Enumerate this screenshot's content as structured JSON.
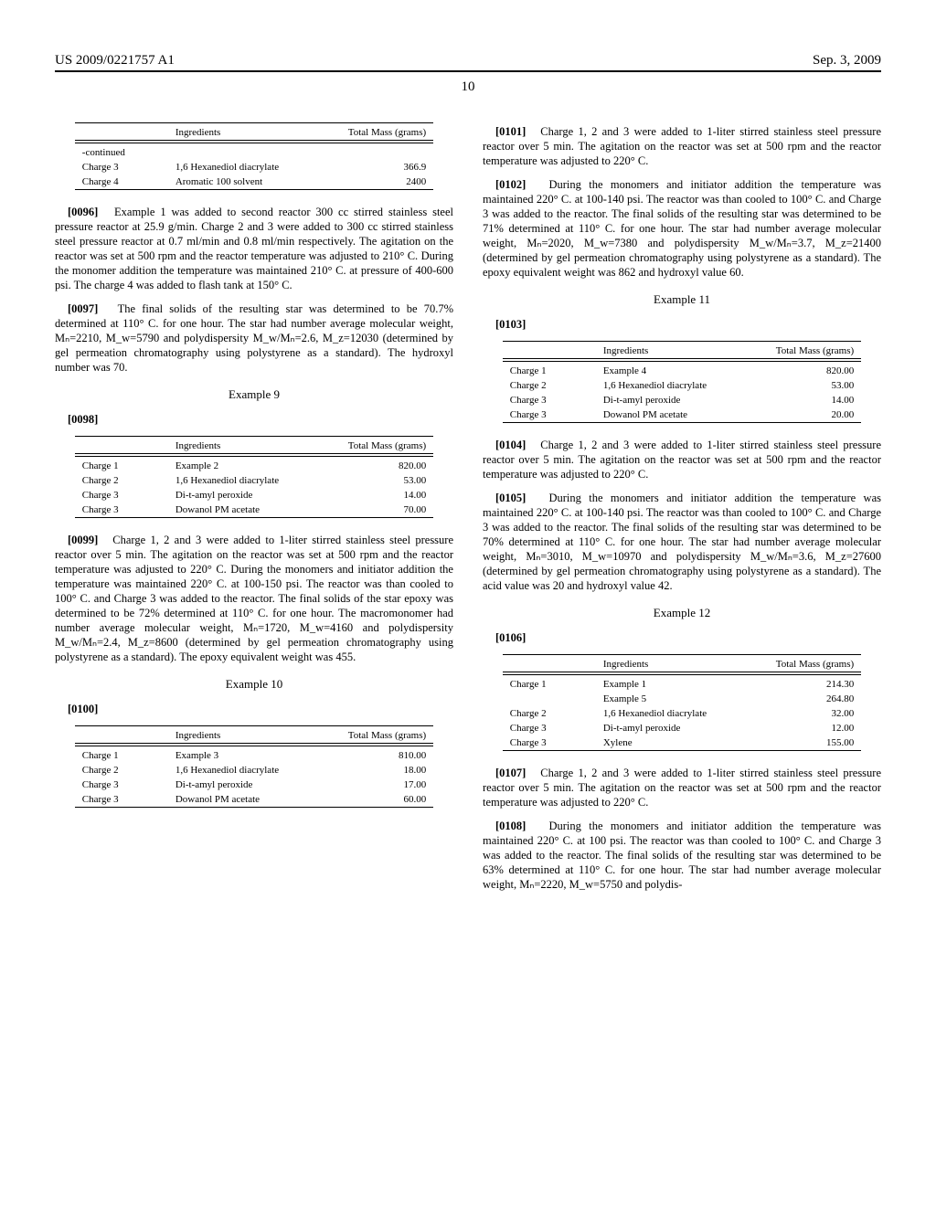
{
  "header": {
    "pub_number": "US 2009/0221757 A1",
    "date": "Sep. 3, 2009"
  },
  "page_number": "10",
  "table_style": {
    "header_font_size": 11,
    "body_font_size": 11,
    "rule_color": "#000000",
    "col_labels": [
      "",
      "Ingredients",
      "Total Mass (grams)"
    ]
  },
  "left_col": {
    "continued_table": {
      "caption": "-continued",
      "rows": [
        {
          "label": "Charge 3",
          "ingredient": "1,6 Hexanediol diacrylate",
          "mass": "366.9"
        },
        {
          "label": "Charge 4",
          "ingredient": "Aromatic 100 solvent",
          "mass": "2400"
        }
      ]
    },
    "p0096": {
      "num": "[0096]",
      "text": "Example 1 was added to second reactor 300 cc stirred stainless steel pressure reactor at 25.9 g/min. Charge 2 and 3 were added to 300 cc stirred stainless steel pressure reactor at 0.7 ml/min and 0.8 ml/min respectively. The agitation on the reactor was set at 500 rpm and the reactor temperature was adjusted to 210° C. During the monomer addition the temperature was maintained 210° C. at pressure of 400-600 psi. The charge 4 was added to flash tank at 150° C."
    },
    "p0097": {
      "num": "[0097]",
      "text": "The final solids of the resulting star was determined to be 70.7% determined at 110° C. for one hour. The star had number average molecular weight, Mₙ=2210, M_w=5790 and polydispersity M_w/Mₙ=2.6, M_z=12030 (determined by gel permeation chromatography using polystyrene as a standard). The hydroxyl number was 70."
    },
    "example9": "Example 9",
    "p0098": {
      "num": "[0098]",
      "text": ""
    },
    "table9": {
      "rows": [
        {
          "label": "Charge 1",
          "ingredient": "Example 2",
          "mass": "820.00"
        },
        {
          "label": "Charge 2",
          "ingredient": "1,6 Hexanediol diacrylate",
          "mass": "53.00"
        },
        {
          "label": "Charge 3",
          "ingredient": "Di-t-amyl peroxide",
          "mass": "14.00"
        },
        {
          "label": "Charge 3",
          "ingredient": "Dowanol PM acetate",
          "mass": "70.00"
        }
      ]
    },
    "p0099": {
      "num": "[0099]",
      "text": "Charge 1, 2 and 3 were added to 1-liter stirred stainless steel pressure reactor over 5 min. The agitation on the reactor was set at 500 rpm and the reactor temperature was adjusted to 220° C. During the monomers and initiator addition the temperature was maintained 220° C. at 100-150 psi. The reactor was than cooled to 100° C. and Charge 3 was added to the reactor. The final solids of the star epoxy was determined to be 72% determined at 110° C. for one hour. The macromonomer had number average molecular weight, Mₙ=1720, M_w=4160 and polydispersity M_w/Mₙ=2.4, M_z=8600 (determined by gel permeation chromatography using polystyrene as a standard). The epoxy equivalent weight was 455."
    },
    "example10": "Example 10",
    "p0100": {
      "num": "[0100]",
      "text": ""
    },
    "table10": {
      "rows": [
        {
          "label": "Charge 1",
          "ingredient": "Example 3",
          "mass": "810.00"
        },
        {
          "label": "Charge 2",
          "ingredient": "1,6 Hexanediol diacrylate",
          "mass": "18.00"
        },
        {
          "label": "Charge 3",
          "ingredient": "Di-t-amyl peroxide",
          "mass": "17.00"
        },
        {
          "label": "Charge 3",
          "ingredient": "Dowanol PM acetate",
          "mass": "60.00"
        }
      ]
    }
  },
  "right_col": {
    "p0101": {
      "num": "[0101]",
      "text": "Charge 1, 2 and 3 were added to 1-liter stirred stainless steel pressure reactor over 5 min. The agitation on the reactor was set at 500 rpm and the reactor temperature was adjusted to 220° C."
    },
    "p0102": {
      "num": "[0102]",
      "text": "During the monomers and initiator addition the temperature was maintained 220° C. at 100-140 psi. The reactor was than cooled to 100° C. and Charge 3 was added to the reactor. The final solids of the resulting star was determined to be 71% determined at 110° C. for one hour. The star had number average molecular weight, Mₙ=2020, M_w=7380 and polydispersity M_w/Mₙ=3.7, M_z=21400 (determined by gel permeation chromatography using polystyrene as a standard). The epoxy equivalent weight was 862 and hydroxyl value 60."
    },
    "example11": "Example 11",
    "p0103": {
      "num": "[0103]",
      "text": ""
    },
    "table11": {
      "rows": [
        {
          "label": "Charge 1",
          "ingredient": "Example 4",
          "mass": "820.00"
        },
        {
          "label": "Charge 2",
          "ingredient": "1,6 Hexanediol diacrylate",
          "mass": "53.00"
        },
        {
          "label": "Charge 3",
          "ingredient": "Di-t-amyl peroxide",
          "mass": "14.00"
        },
        {
          "label": "Charge 3",
          "ingredient": "Dowanol PM acetate",
          "mass": "20.00"
        }
      ]
    },
    "p0104": {
      "num": "[0104]",
      "text": "Charge 1, 2 and 3 were added to 1-liter stirred stainless steel pressure reactor over 5 min. The agitation on the reactor was set at 500 rpm and the reactor temperature was adjusted to 220° C."
    },
    "p0105": {
      "num": "[0105]",
      "text": "During the monomers and initiator addition the temperature was maintained 220° C. at 100-140 psi. The reactor was than cooled to 100° C. and Charge 3 was added to the reactor. The final solids of the resulting star was determined to be 70% determined at 110° C. for one hour. The star had number average molecular weight, Mₙ=3010, M_w=10970 and polydispersity M_w/Mₙ=3.6, M_z=27600 (determined by gel permeation chromatography using polystyrene as a standard). The acid value was 20 and hydroxyl value 42."
    },
    "example12": "Example 12",
    "p0106": {
      "num": "[0106]",
      "text": ""
    },
    "table12": {
      "rows": [
        {
          "label": "Charge 1",
          "ingredient": "Example 1",
          "mass": "214.30"
        },
        {
          "label": "",
          "ingredient": "Example 5",
          "mass": "264.80"
        },
        {
          "label": "Charge 2",
          "ingredient": "1,6 Hexanediol diacrylate",
          "mass": "32.00"
        },
        {
          "label": "Charge 3",
          "ingredient": "Di-t-amyl peroxide",
          "mass": "12.00"
        },
        {
          "label": "Charge 3",
          "ingredient": "Xylene",
          "mass": "155.00"
        }
      ]
    },
    "p0107": {
      "num": "[0107]",
      "text": "Charge 1, 2 and 3 were added to 1-liter stirred stainless steel pressure reactor over 5 min. The agitation on the reactor was set at 500 rpm and the reactor temperature was adjusted to 220° C."
    },
    "p0108": {
      "num": "[0108]",
      "text": "During the monomers and initiator addition the temperature was maintained 220° C. at 100 psi. The reactor was than cooled to 100° C. and Charge 3 was added to the reactor. The final solids of the resulting star was determined to be 63% determined at 110° C. for one hour. The star had number average molecular weight, Mₙ=2220, M_w=5750 and polydis-"
    }
  }
}
